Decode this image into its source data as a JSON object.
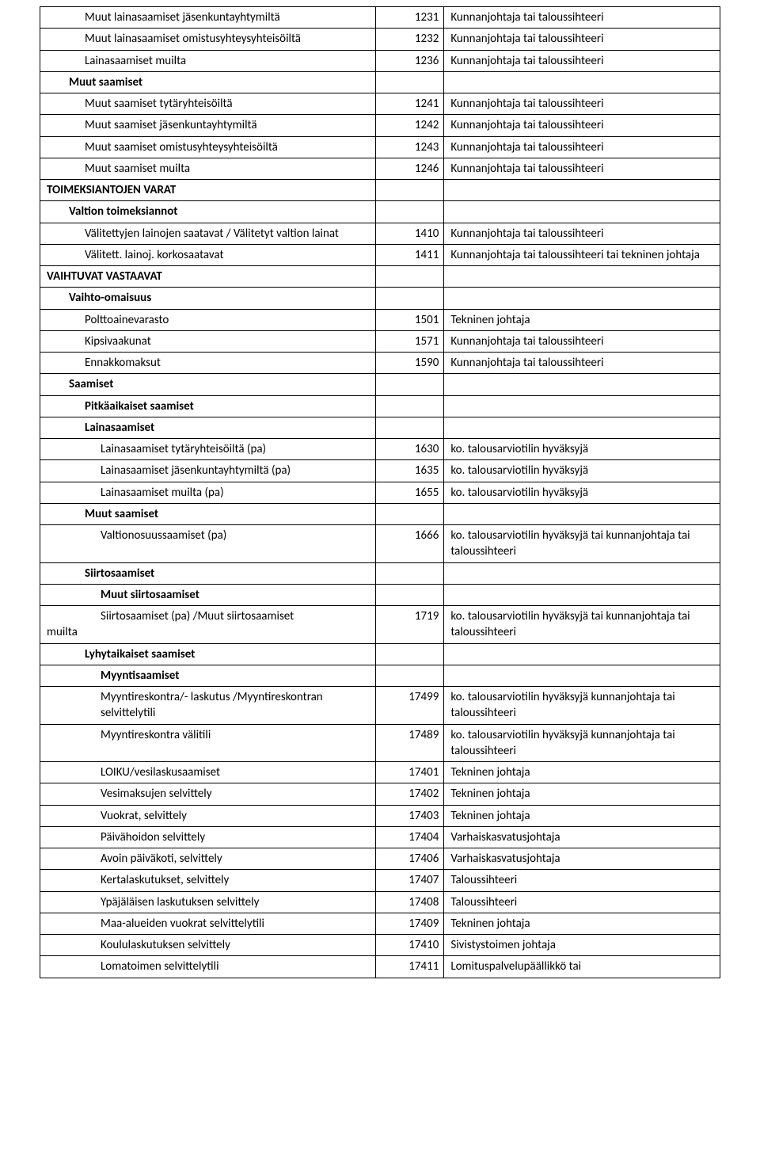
{
  "rows": [
    {
      "c1": "Muut lainasaamiset jäsenkuntayhtymiltä",
      "c2": "1231",
      "c3": "Kunnanjohtaja tai taloussihteeri",
      "indent": "ind2",
      "bold": false
    },
    {
      "c1": "Muut lainasaamiset omistusyhteysyhteisöiltä",
      "c2": "1232",
      "c3": "Kunnanjohtaja tai taloussihteeri",
      "indent": "ind2",
      "bold": false
    },
    {
      "c1": "Lainasaamiset muilta",
      "c2": "1236",
      "c3": "Kunnanjohtaja tai taloussihteeri",
      "indent": "ind2",
      "bold": false
    },
    {
      "c1": "Muut saamiset",
      "c2": "",
      "c3": "",
      "indent": "ind1",
      "bold": true
    },
    {
      "c1": "Muut saamiset tytäryhteisöiltä",
      "c2": "1241",
      "c3": "Kunnanjohtaja tai taloussihteeri",
      "indent": "ind2",
      "bold": false
    },
    {
      "c1": "Muut saamiset jäsenkuntayhtymiltä",
      "c2": "1242",
      "c3": "Kunnanjohtaja tai taloussihteeri",
      "indent": "ind2",
      "bold": false
    },
    {
      "c1": "Muut saamiset omistusyhteysyhteisöiltä",
      "c2": "1243",
      "c3": "Kunnanjohtaja tai taloussihteeri",
      "indent": "ind2",
      "bold": false
    },
    {
      "c1": "Muut saamiset muilta",
      "c2": "1246",
      "c3": "Kunnanjohtaja tai taloussihteeri",
      "indent": "ind2",
      "bold": false
    },
    {
      "c1": "TOIMEKSIANTOJEN VARAT",
      "c2": "",
      "c3": "",
      "indent": "",
      "bold": true
    },
    {
      "c1": "Valtion toimeksiannot",
      "c2": "",
      "c3": "",
      "indent": "ind1",
      "bold": true
    },
    {
      "c1": "Välitettyjen lainojen saatavat / Välitetyt valtion lainat",
      "c2": "1410",
      "c3": "Kunnanjohtaja tai taloussihteeri",
      "indent": "ind2",
      "bold": false
    },
    {
      "c1": "Välitett. lainoj. korkosaatavat",
      "c2": "1411",
      "c3": "Kunnanjohtaja tai taloussihteeri tai tekninen johtaja",
      "indent": "ind2",
      "bold": false
    },
    {
      "c1": "VAIHTUVAT VASTAAVAT",
      "c2": "",
      "c3": "",
      "indent": "",
      "bold": true
    },
    {
      "c1": "Vaihto-omaisuus",
      "c2": "",
      "c3": "",
      "indent": "ind1",
      "bold": true
    },
    {
      "c1": "Polttoainevarasto",
      "c2": "1501",
      "c3": "Tekninen johtaja",
      "indent": "ind2",
      "bold": false
    },
    {
      "c1": "Kipsivaakunat",
      "c2": "1571",
      "c3": "Kunnanjohtaja tai taloussihteeri",
      "indent": "ind2",
      "bold": false
    },
    {
      "c1": "Ennakkomaksut",
      "c2": "1590",
      "c3": "Kunnanjohtaja tai taloussihteeri",
      "indent": "ind2",
      "bold": false
    },
    {
      "c1": "Saamiset",
      "c2": "",
      "c3": "",
      "indent": "ind1",
      "bold": true
    },
    {
      "c1": "Pitkäaikaiset saamiset",
      "c2": "",
      "c3": "",
      "indent": "ind2",
      "bold": true
    },
    {
      "c1": "Lainasaamiset",
      "c2": "",
      "c3": "",
      "indent": "ind2",
      "bold": true
    },
    {
      "c1": "Lainasaamiset tytäryhteisöiltä (pa)",
      "c2": "1630",
      "c3": "ko. talousarviotilin hyväksyjä",
      "indent": "ind3",
      "bold": false
    },
    {
      "c1": "Lainasaamiset jäsenkuntayhtymiltä (pa)",
      "c2": "1635",
      "c3": "ko. talousarviotilin hyväksyjä",
      "indent": "ind3",
      "bold": false
    },
    {
      "c1": "Lainasaamiset muilta (pa)",
      "c2": "1655",
      "c3": "ko. talousarviotilin hyväksyjä",
      "indent": "ind3",
      "bold": false
    },
    {
      "c1": "Muut saamiset",
      "c2": "",
      "c3": "",
      "indent": "ind2",
      "bold": true
    },
    {
      "c1": "Valtionosuussaamiset (pa)",
      "c2": "1666",
      "c3": "ko. talousarviotilin hyväksyjä tai kunnanjohtaja tai taloussihteeri",
      "indent": "ind3",
      "bold": false
    },
    {
      "c1": "Siirtosaamiset",
      "c2": "",
      "c3": "",
      "indent": "ind2",
      "bold": true
    },
    {
      "c1": "Muut siirtosaamiset",
      "c2": "",
      "c3": "",
      "indent": "ind3",
      "bold": true
    },
    {
      "c1": "Siirtosaamiset (pa) /Muut siirtosaamiset muilta",
      "c2": "1719",
      "c3": "ko. talousarviotilin hyväksyjä tai kunnanjohtaja tai taloussihteeri",
      "indent": "",
      "bold": false,
      "special_indent": true
    },
    {
      "c1": "Lyhytaikaiset saamiset",
      "c2": "",
      "c3": "",
      "indent": "ind2",
      "bold": true
    },
    {
      "c1": "Myyntisaamiset",
      "c2": "",
      "c3": "",
      "indent": "ind3",
      "bold": true
    },
    {
      "c1": "Myyntireskontra/- laskutus /Myyntireskontran selvittelytili",
      "c2": "17499",
      "c3": "ko. talousarviotilin hyväksyjä kunnanjohtaja tai taloussihteeri",
      "indent": "ind3",
      "bold": false
    },
    {
      "c1": "Myyntireskontra välitili",
      "c2": "17489",
      "c3": "ko. talousarviotilin hyväksyjä kunnanjohtaja tai taloussihteeri",
      "indent": "ind3",
      "bold": false
    },
    {
      "c1": "LOIKU/vesilaskusaamiset",
      "c2": "17401",
      "c3": "Tekninen johtaja",
      "indent": "ind3",
      "bold": false
    },
    {
      "c1": "Vesimaksujen selvittely",
      "c2": "17402",
      "c3": "Tekninen johtaja",
      "indent": "ind3",
      "bold": false
    },
    {
      "c1": "Vuokrat, selvittely",
      "c2": "17403",
      "c3": "Tekninen johtaja",
      "indent": "ind3",
      "bold": false
    },
    {
      "c1": "Päivähoidon selvittely",
      "c2": "17404",
      "c3": "Varhaiskasvatusjohtaja",
      "indent": "ind3",
      "bold": false
    },
    {
      "c1": "Avoin päiväkoti, selvittely",
      "c2": "17406",
      "c3": "Varhaiskasvatusjohtaja",
      "indent": "ind3",
      "bold": false
    },
    {
      "c1": "Kertalaskutukset, selvittely",
      "c2": "17407",
      "c3": "Taloussihteeri",
      "indent": "ind3",
      "bold": false
    },
    {
      "c1": "Ypäjäläisen laskutuksen selvittely",
      "c2": "17408",
      "c3": "Taloussihteeri",
      "indent": "ind3",
      "bold": false
    },
    {
      "c1": "Maa-alueiden vuokrat selvittelytili",
      "c2": "17409",
      "c3": "Tekninen johtaja",
      "indent": "ind3",
      "bold": false
    },
    {
      "c1": "Koululaskutuksen selvittely",
      "c2": "17410",
      "c3": "Sivistystoimen johtaja",
      "indent": "ind3",
      "bold": false
    },
    {
      "c1": "Lomatoimen selvittelytili",
      "c2": "17411",
      "c3": "Lomituspalvelupäällikkö tai",
      "indent": "ind3",
      "bold": false
    }
  ]
}
